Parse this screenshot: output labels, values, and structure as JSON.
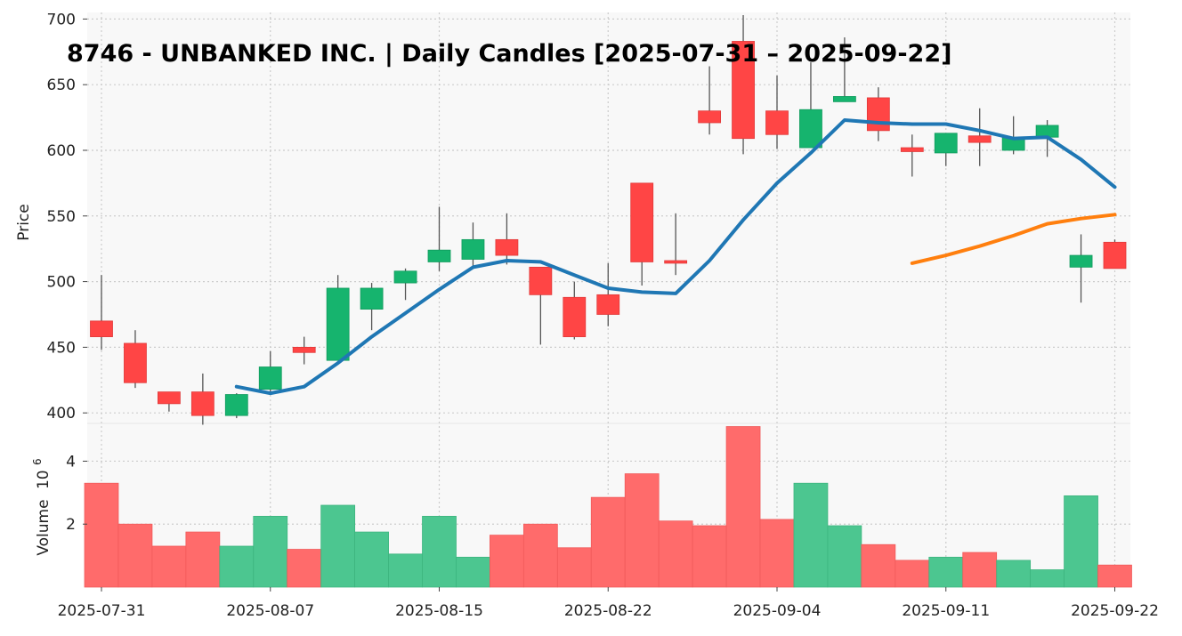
{
  "chart_data": {
    "type": "candlestick",
    "title": "8746 - UNBANKED INC. | Daily Candles [2025-07-31 – 2025-09-22]",
    "price_axis": {
      "label": "Price",
      "ylim": [
        392,
        705
      ],
      "ticks": [
        400,
        450,
        500,
        550,
        600,
        650,
        700
      ],
      "tick_labels": [
        "400",
        "450",
        "500",
        "550",
        "600",
        "650",
        "700"
      ]
    },
    "volume_axis": {
      "label": "Volume",
      "multiplier_label": "10",
      "multiplier_exponent": "6",
      "ylim": [
        0,
        5.2
      ],
      "ticks": [
        2,
        4
      ],
      "tick_labels": [
        "2",
        "4"
      ]
    },
    "x_ticks": [
      {
        "index": 0,
        "label": "2025-07-31"
      },
      {
        "index": 5,
        "label": "2025-08-07"
      },
      {
        "index": 10,
        "label": "2025-08-15"
      },
      {
        "index": 15,
        "label": "2025-08-22"
      },
      {
        "index": 20,
        "label": "2025-09-04"
      },
      {
        "index": 25,
        "label": "2025-09-11"
      },
      {
        "index": 30,
        "label": "2025-09-22"
      }
    ],
    "grid": true,
    "colors": {
      "up": "#16b46e",
      "down": "#ff4545",
      "up_volume": "#4cc690",
      "down_volume": "#ff6b6b",
      "wick": "#555555",
      "ma_short": "#1f77b4",
      "ma_long": "#ff7f0e",
      "plot_bg": "#f8f8f8",
      "grid": "#cccccc"
    },
    "candles": [
      {
        "o": 470,
        "h": 505,
        "l": 448,
        "c": 458,
        "v": 3.3
      },
      {
        "o": 453,
        "h": 463,
        "l": 419,
        "c": 423,
        "v": 2.0
      },
      {
        "o": 416,
        "h": 416,
        "l": 401,
        "c": 407,
        "v": 1.3
      },
      {
        "o": 416,
        "h": 430,
        "l": 391,
        "c": 398,
        "v": 1.75
      },
      {
        "o": 398,
        "h": 415,
        "l": 396,
        "c": 414,
        "v": 1.3
      },
      {
        "o": 418,
        "h": 447,
        "l": 415,
        "c": 435,
        "v": 2.25
      },
      {
        "o": 450,
        "h": 458,
        "l": 437,
        "c": 446,
        "v": 1.2
      },
      {
        "o": 440,
        "h": 505,
        "l": 440,
        "c": 495,
        "v": 2.6
      },
      {
        "o": 479,
        "h": 499,
        "l": 463,
        "c": 495,
        "v": 1.75
      },
      {
        "o": 499,
        "h": 510,
        "l": 486,
        "c": 508,
        "v": 1.05
      },
      {
        "o": 515,
        "h": 557,
        "l": 508,
        "c": 524,
        "v": 2.25
      },
      {
        "o": 517,
        "h": 545,
        "l": 512,
        "c": 532,
        "v": 0.95
      },
      {
        "o": 532,
        "h": 552,
        "l": 513,
        "c": 520,
        "v": 1.65
      },
      {
        "o": 511,
        "h": 511,
        "l": 452,
        "c": 490,
        "v": 2.0
      },
      {
        "o": 488,
        "h": 500,
        "l": 456,
        "c": 458,
        "v": 1.25
      },
      {
        "o": 490,
        "h": 514,
        "l": 466,
        "c": 475,
        "v": 2.85
      },
      {
        "o": 575,
        "h": 575,
        "l": 497,
        "c": 515,
        "v": 3.6
      },
      {
        "o": 516,
        "h": 552,
        "l": 505,
        "c": 514,
        "v": 2.1
      },
      {
        "o": 630,
        "h": 664,
        "l": 612,
        "c": 621,
        "v": 1.95
      },
      {
        "o": 683,
        "h": 703,
        "l": 597,
        "c": 609,
        "v": 5.1
      },
      {
        "o": 630,
        "h": 657,
        "l": 601,
        "c": 612,
        "v": 2.15
      },
      {
        "o": 602,
        "h": 667,
        "l": 602,
        "c": 631,
        "v": 3.3
      },
      {
        "o": 637,
        "h": 686,
        "l": 637,
        "c": 641,
        "v": 1.95
      },
      {
        "o": 640,
        "h": 648,
        "l": 607,
        "c": 615,
        "v": 1.35
      },
      {
        "o": 602,
        "h": 612,
        "l": 580,
        "c": 599,
        "v": 0.85
      },
      {
        "o": 598,
        "h": 613,
        "l": 588,
        "c": 613,
        "v": 0.95
      },
      {
        "o": 611,
        "h": 632,
        "l": 588,
        "c": 606,
        "v": 1.1
      },
      {
        "o": 600,
        "h": 626,
        "l": 597,
        "c": 610,
        "v": 0.85
      },
      {
        "o": 610,
        "h": 623,
        "l": 595,
        "c": 619,
        "v": 0.55
      },
      {
        "o": 511,
        "h": 536,
        "l": 484,
        "c": 520,
        "v": 2.9
      },
      {
        "o": 530,
        "h": 532,
        "l": 510,
        "c": 510,
        "v": 0.7
      }
    ],
    "ma_short": [
      null,
      null,
      null,
      null,
      420,
      415,
      420,
      438,
      458,
      476,
      494,
      511,
      516,
      515,
      505,
      495,
      492,
      491,
      516,
      547,
      575,
      598,
      623,
      621,
      620,
      620,
      615,
      609,
      610,
      593,
      572
    ],
    "ma_long": [
      null,
      null,
      null,
      null,
      null,
      null,
      null,
      null,
      null,
      null,
      null,
      null,
      null,
      null,
      null,
      null,
      null,
      null,
      null,
      null,
      null,
      null,
      null,
      null,
      514,
      520,
      527,
      535,
      544,
      548,
      551
    ]
  }
}
